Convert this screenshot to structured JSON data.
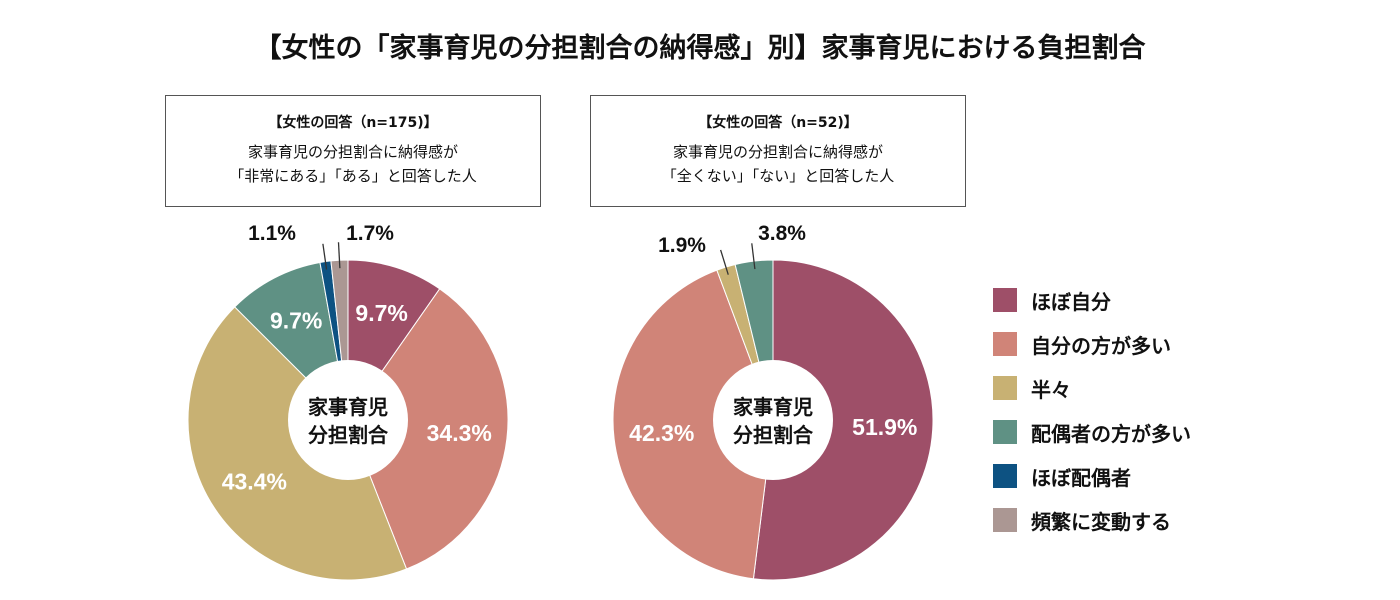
{
  "title": "【女性の「家事育児の分担割合の納得感」別】家事育児における負担割合",
  "chart_data": [
    {
      "type": "pie",
      "variant": "donut",
      "box": {
        "heading": "【女性の回答（n=175)】",
        "line1": "家事育児の分担割合に納得感が",
        "line2": "「非常にある」「ある」と回答した人"
      },
      "center_label": [
        "家事育児",
        "分担割合"
      ],
      "categories": [
        "ほぼ自分",
        "自分の方が多い",
        "半々",
        "配偶者の方が多い",
        "ほぼ配偶者",
        "頻繁に変動する"
      ],
      "values": [
        9.7,
        34.3,
        43.4,
        9.7,
        1.1,
        1.7
      ],
      "labels": [
        "9.7%",
        "34.3%",
        "43.4%",
        "9.7%",
        "1.1%",
        "1.7%"
      ]
    },
    {
      "type": "pie",
      "variant": "donut",
      "box": {
        "heading": "【女性の回答（n=52)】",
        "line1": "家事育児の分担割合に納得感が",
        "line2": "「全くない」「ない」と回答した人"
      },
      "center_label": [
        "家事育児",
        "分担割合"
      ],
      "categories": [
        "ほぼ自分",
        "自分の方が多い",
        "半々",
        "配偶者の方が多い"
      ],
      "values": [
        51.9,
        42.3,
        1.9,
        3.8
      ],
      "labels": [
        "51.9%",
        "42.3%",
        "1.9%",
        "3.8%"
      ]
    }
  ],
  "legend": [
    {
      "label": "ほぼ自分",
      "color": "#9e4f68"
    },
    {
      "label": "自分の方が多い",
      "color": "#d08478"
    },
    {
      "label": "半々",
      "color": "#c8b173"
    },
    {
      "label": "配偶者の方が多い",
      "color": "#5f9184"
    },
    {
      "label": "ほぼ配偶者",
      "color": "#0d5282"
    },
    {
      "label": "頻繁に変動する",
      "color": "#ab9793"
    }
  ]
}
